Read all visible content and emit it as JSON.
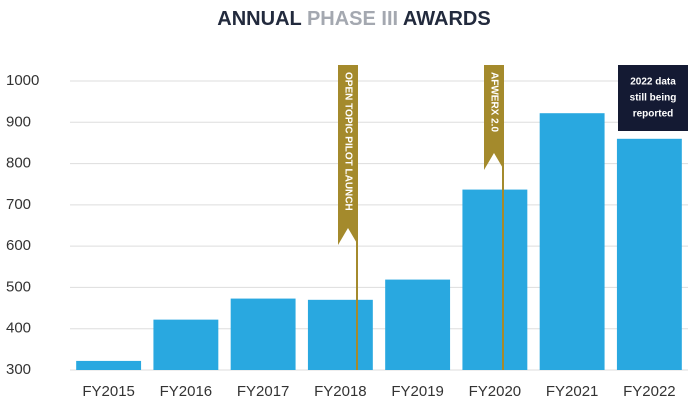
{
  "chart_data": {
    "type": "bar",
    "title": [
      "ANNUAL",
      "PHASE III",
      "AWARDS"
    ],
    "categories": [
      "FY2015",
      "FY2016",
      "FY2017",
      "FY2018",
      "FY2019",
      "FY2020",
      "FY2021",
      "FY2022"
    ],
    "values": [
      322,
      422,
      473,
      470,
      519,
      737,
      922,
      860
    ],
    "color": "#29a8e0",
    "ylim": [
      300,
      1000
    ],
    "yticks": [
      300,
      400,
      500,
      600,
      700,
      800,
      900,
      1000
    ],
    "grid": true,
    "annotations": [
      "OPEN TOPIC PILOT LAUNCH",
      "AFWERX 2.0"
    ],
    "note": [
      "2022 data",
      "still being",
      "reported"
    ]
  }
}
